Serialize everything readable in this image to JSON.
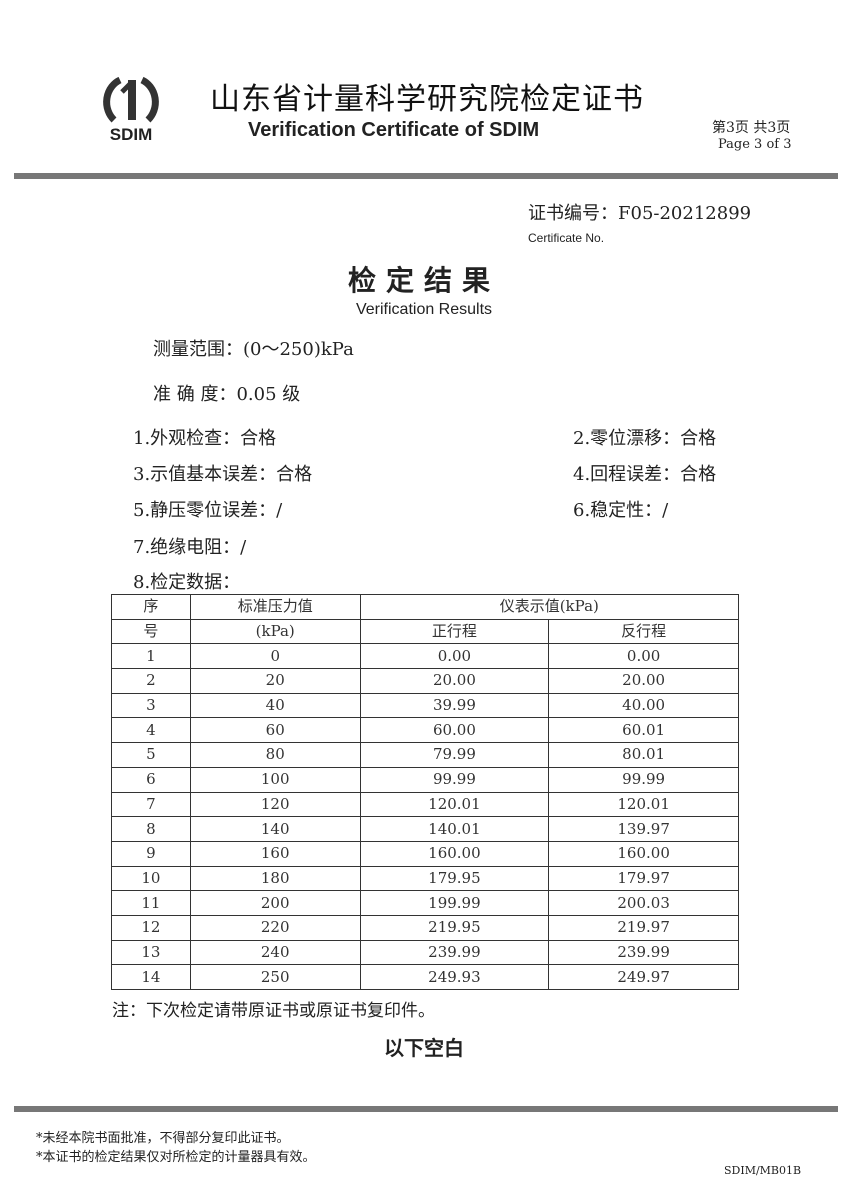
{
  "header": {
    "logo_text": "SDIM",
    "title_cn": "山东省计量科学研究院检定证书",
    "title_en": "Verification Certificate of SDIM",
    "page_cn": "第3页 共3页",
    "page_en": "Page 3  of 3"
  },
  "certificate": {
    "number_label": "证书编号：",
    "number": "F05-20212899",
    "number_label_en": "Certificate No."
  },
  "results": {
    "title": "检定结果",
    "title_en": "Verification Results",
    "range": "测量范围：(0～250)kPa",
    "accuracy": "准 确 度：0.05 级",
    "items": [
      "1.外观检查：合格",
      "2.零位漂移：合格",
      "3.示值基本误差：合格",
      "4.回程误差：合格",
      "5.静压零位误差：/",
      "6.稳定性：/",
      "7.绝缘电阻：/",
      "8.检定数据："
    ]
  },
  "table": {
    "h_seq_1": "序",
    "h_seq_2": "号",
    "h_std_1": "标准压力值",
    "h_std_2": "(kPa)",
    "h_ind": "仪表示值(kPa)",
    "h_fwd": "正行程",
    "h_rev": "反行程",
    "rows": [
      [
        "1",
        "0",
        "0.00",
        "0.00"
      ],
      [
        "2",
        "20",
        "20.00",
        "20.00"
      ],
      [
        "3",
        "40",
        "39.99",
        "40.00"
      ],
      [
        "4",
        "60",
        "60.00",
        "60.01"
      ],
      [
        "5",
        "80",
        "79.99",
        "80.01"
      ],
      [
        "6",
        "100",
        "99.99",
        "99.99"
      ],
      [
        "7",
        "120",
        "120.01",
        "120.01"
      ],
      [
        "8",
        "140",
        "140.01",
        "139.97"
      ],
      [
        "9",
        "160",
        "160.00",
        "160.00"
      ],
      [
        "10",
        "180",
        "179.95",
        "179.97"
      ],
      [
        "11",
        "200",
        "199.99",
        "200.03"
      ],
      [
        "12",
        "220",
        "219.95",
        "219.97"
      ],
      [
        "13",
        "240",
        "239.99",
        "239.99"
      ],
      [
        "14",
        "250",
        "249.93",
        "249.97"
      ]
    ]
  },
  "note": "注：下次检定请带原证书或原证书复印件。",
  "blank_below": "以下空白",
  "footer": {
    "line1": "*未经本院书面批准，不得部分复印此证书。",
    "line2": "*本证书的检定结果仅对所检定的计量器具有效。",
    "form_code": "SDIM/MB01B"
  }
}
